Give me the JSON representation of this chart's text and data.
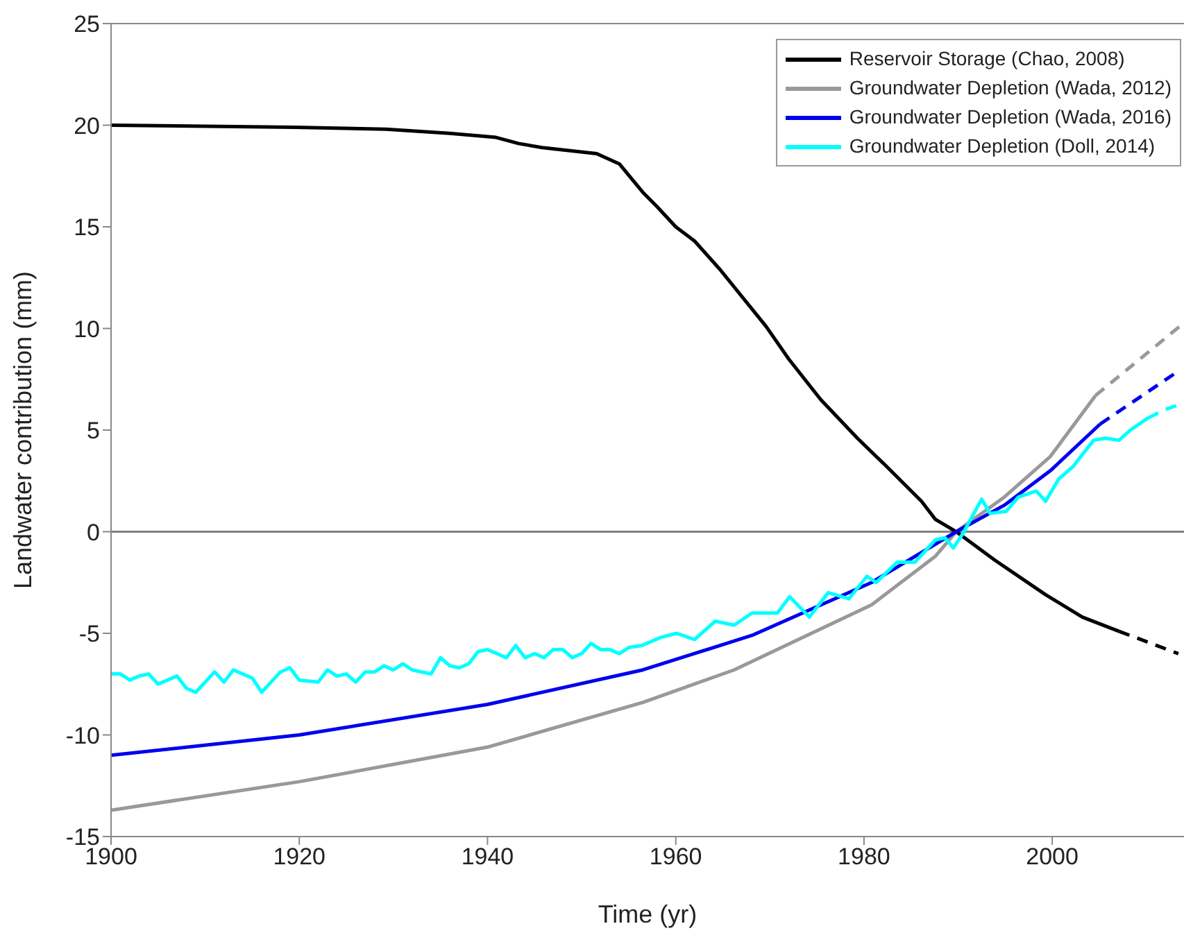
{
  "chart_data": {
    "type": "line",
    "xlabel": "Time (yr)",
    "ylabel": "Landwater contribution (mm)",
    "xlim": [
      1900,
      2014
    ],
    "xticks": [
      1900,
      1920,
      1940,
      1960,
      1980,
      2000
    ],
    "ylim": [
      -15,
      25
    ],
    "yticks": [
      -15,
      -10,
      -5,
      0,
      5,
      10,
      15,
      20,
      25
    ],
    "grid": false,
    "legend": "top right",
    "ref_lines": [
      {
        "axis": "y",
        "value": 0,
        "color": "#808080"
      }
    ],
    "series": [
      {
        "name": "Reservoir Storage (Chao, 2008)",
        "color": "#000000",
        "line_style": "solid",
        "x": [
          1900,
          1919.5,
          1929.2,
          1936,
          1940.9,
          1943.3,
          1945.8,
          1951.6,
          1954,
          1956.5,
          1958,
          1960,
          1962,
          1964.7,
          1969.6,
          1972,
          1975.4,
          1979.3,
          1982.2,
          1986.1,
          1987.6,
          1989.8,
          1993.9,
          1999.3,
          2003.2,
          2007.1
        ],
        "values": [
          20.0,
          19.9,
          19.8,
          19.6,
          19.4,
          19.1,
          18.9,
          18.6,
          18.1,
          16.7,
          16.0,
          15.0,
          14.3,
          12.9,
          10.1,
          8.5,
          6.5,
          4.6,
          3.3,
          1.5,
          0.6,
          0,
          -1.4,
          -3.1,
          -4.2,
          -4.9
        ]
      },
      {
        "name": "Groundwater Depletion (Wada, 2012)",
        "color": "#999999",
        "line_style": "solid",
        "x": [
          1900,
          1920,
          1940,
          1956.5,
          1966.2,
          1980.8,
          1987.6,
          1989.8,
          1994.9,
          1999.8,
          2004.6
        ],
        "values": [
          -13.7,
          -12.3,
          -10.6,
          -8.4,
          -6.8,
          -3.6,
          -1.2,
          0,
          1.7,
          3.7,
          6.7
        ]
      },
      {
        "name": "Groundwater Depletion (Wada, 2016)",
        "color": "#0000ee",
        "line_style": "solid",
        "x": [
          1900,
          1920,
          1940,
          1956.5,
          1968.1,
          1980.8,
          1989.8,
          1994.9,
          1999.8,
          2005.1
        ],
        "values": [
          -11.0,
          -10.0,
          -8.5,
          -6.8,
          -5.1,
          -2.5,
          0,
          1.3,
          3.0,
          5.3
        ]
      },
      {
        "name": "Groundwater Depletion (Doll, 2014)",
        "color": "#00ffff",
        "line_style": "solid",
        "x": [
          1900,
          1901,
          1902,
          1903,
          1904,
          1905,
          1906,
          1907,
          1908,
          1909,
          1911,
          1912,
          1913,
          1915,
          1916,
          1918,
          1919,
          1920,
          1922,
          1923,
          1924,
          1925,
          1926,
          1927,
          1928,
          1929,
          1930,
          1931,
          1932,
          1933,
          1934,
          1935,
          1936,
          1937,
          1938,
          1939,
          1940,
          1941,
          1942,
          1943,
          1944,
          1945,
          1946,
          1947,
          1948,
          1949,
          1950,
          1951,
          1952,
          1953,
          1954,
          1955,
          1956.4,
          1958.4,
          1960.1,
          1962,
          1964.2,
          1966.2,
          1968.1,
          1970.8,
          1972.1,
          1974.2,
          1976.2,
          1978.4,
          1980.3,
          1981.3,
          1983.5,
          1985.4,
          1987.6,
          1988.6,
          1989.5,
          1990.5,
          1992.5,
          1993.4,
          1995.1,
          1996.4,
          1998.3,
          1999.3,
          2000.7,
          2002.2,
          2004.4,
          2005.6,
          2007.1,
          2008.3,
          2010.2
        ],
        "values": [
          -7.0,
          -7.0,
          -7.3,
          -7.1,
          -7.0,
          -7.5,
          -7.3,
          -7.1,
          -7.7,
          -7.9,
          -6.9,
          -7.4,
          -6.8,
          -7.2,
          -7.9,
          -6.9,
          -6.7,
          -7.3,
          -7.4,
          -6.8,
          -7.1,
          -7.0,
          -7.4,
          -6.9,
          -6.9,
          -6.6,
          -6.8,
          -6.5,
          -6.8,
          -6.9,
          -7.0,
          -6.2,
          -6.6,
          -6.7,
          -6.5,
          -5.9,
          -5.8,
          -6.0,
          -6.2,
          -5.6,
          -6.2,
          -6.0,
          -6.2,
          -5.8,
          -5.8,
          -6.2,
          -6.0,
          -5.5,
          -5.8,
          -5.8,
          -6.0,
          -5.7,
          -5.6,
          -5.2,
          -5.0,
          -5.3,
          -4.4,
          -4.6,
          -4.0,
          -4.0,
          -3.2,
          -4.2,
          -3.0,
          -3.3,
          -2.2,
          -2.5,
          -1.5,
          -1.5,
          -0.4,
          -0.3,
          -0.8,
          -0.1,
          1.6,
          0.9,
          1.0,
          1.7,
          2.0,
          1.5,
          2.6,
          3.2,
          4.5,
          4.6,
          4.5,
          5.0,
          5.6
        ]
      },
      {
        "color": "#000000",
        "line_style": "dashed",
        "x": [
          2007.1,
          2013.4
        ],
        "values": [
          -4.9,
          -6.0
        ]
      },
      {
        "color": "#999999",
        "line_style": "dashed",
        "x": [
          2004.6,
          2013.8
        ],
        "values": [
          6.7,
          10.2
        ]
      },
      {
        "color": "#0000ee",
        "line_style": "dashed",
        "x": [
          2005.1,
          2013.4
        ],
        "values": [
          5.3,
          7.9
        ]
      },
      {
        "color": "#00ffff",
        "line_style": "dashed",
        "x": [
          2010.2,
          2011.9,
          2013.8
        ],
        "values": [
          5.6,
          6.0,
          6.3
        ]
      }
    ]
  }
}
